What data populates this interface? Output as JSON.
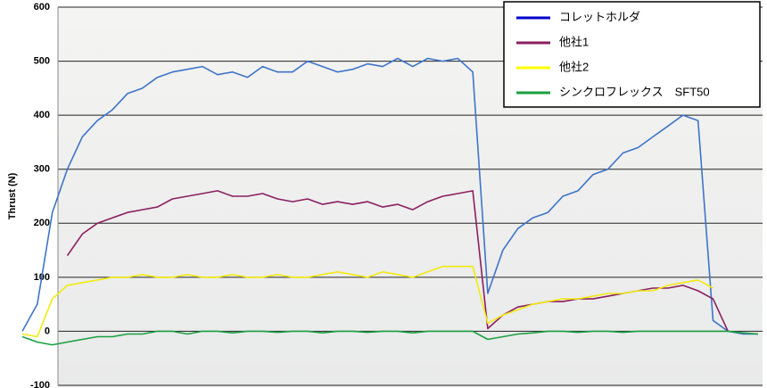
{
  "chart_data": {
    "type": "line",
    "y_label": "Thrust (N)",
    "ylim": [
      -100,
      600
    ],
    "yticks": [
      600,
      500,
      400,
      300,
      200,
      100,
      0,
      -100
    ],
    "grid": true,
    "legend": "upper right",
    "series": [
      {
        "name": "コレットホルダ",
        "color": "#3f74c8",
        "legend_color": "#0000cc",
        "values": [
          0,
          50,
          220,
          300,
          360,
          390,
          410,
          440,
          450,
          470,
          480,
          485,
          490,
          475,
          480,
          470,
          490,
          480,
          480,
          500,
          490,
          480,
          485,
          495,
          490,
          505,
          490,
          505,
          500,
          505,
          480,
          70,
          150,
          190,
          210,
          220,
          250,
          260,
          290,
          300,
          330,
          340,
          360,
          380,
          400,
          390,
          20,
          0,
          -5,
          -5
        ]
      },
      {
        "name": "他社1",
        "color": "#8b1f5f",
        "legend_color": "#8b1f5f",
        "values": [
          null,
          null,
          null,
          140,
          180,
          200,
          210,
          220,
          225,
          230,
          245,
          250,
          255,
          260,
          250,
          250,
          255,
          245,
          240,
          245,
          235,
          240,
          235,
          240,
          230,
          235,
          225,
          240,
          250,
          255,
          260,
          5,
          30,
          45,
          50,
          55,
          55,
          60,
          60,
          65,
          70,
          75,
          80,
          80,
          85,
          75,
          60,
          0,
          null,
          null
        ]
      },
      {
        "name": "他社2",
        "color": "#f2ea10",
        "legend_color": "#ffff00",
        "values": [
          -5,
          -10,
          60,
          85,
          90,
          95,
          100,
          100,
          105,
          100,
          100,
          105,
          100,
          100,
          105,
          100,
          100,
          105,
          100,
          100,
          105,
          110,
          105,
          100,
          110,
          105,
          100,
          110,
          120,
          120,
          120,
          15,
          30,
          40,
          50,
          55,
          60,
          60,
          65,
          70,
          70,
          75,
          75,
          85,
          90,
          95,
          80,
          null,
          null,
          null
        ]
      },
      {
        "name": "シンクロフレックス　SFT50",
        "color": "#1aa040",
        "legend_color": "#1aa040",
        "values": [
          -10,
          -20,
          -25,
          -20,
          -15,
          -10,
          -10,
          -5,
          -5,
          0,
          0,
          -5,
          0,
          0,
          -3,
          0,
          0,
          -2,
          0,
          0,
          -3,
          0,
          0,
          -2,
          0,
          0,
          -3,
          0,
          0,
          0,
          0,
          -15,
          -10,
          -5,
          -3,
          0,
          0,
          -2,
          0,
          0,
          -2,
          0,
          0,
          0,
          0,
          0,
          0,
          0,
          -3,
          -5
        ]
      }
    ]
  }
}
